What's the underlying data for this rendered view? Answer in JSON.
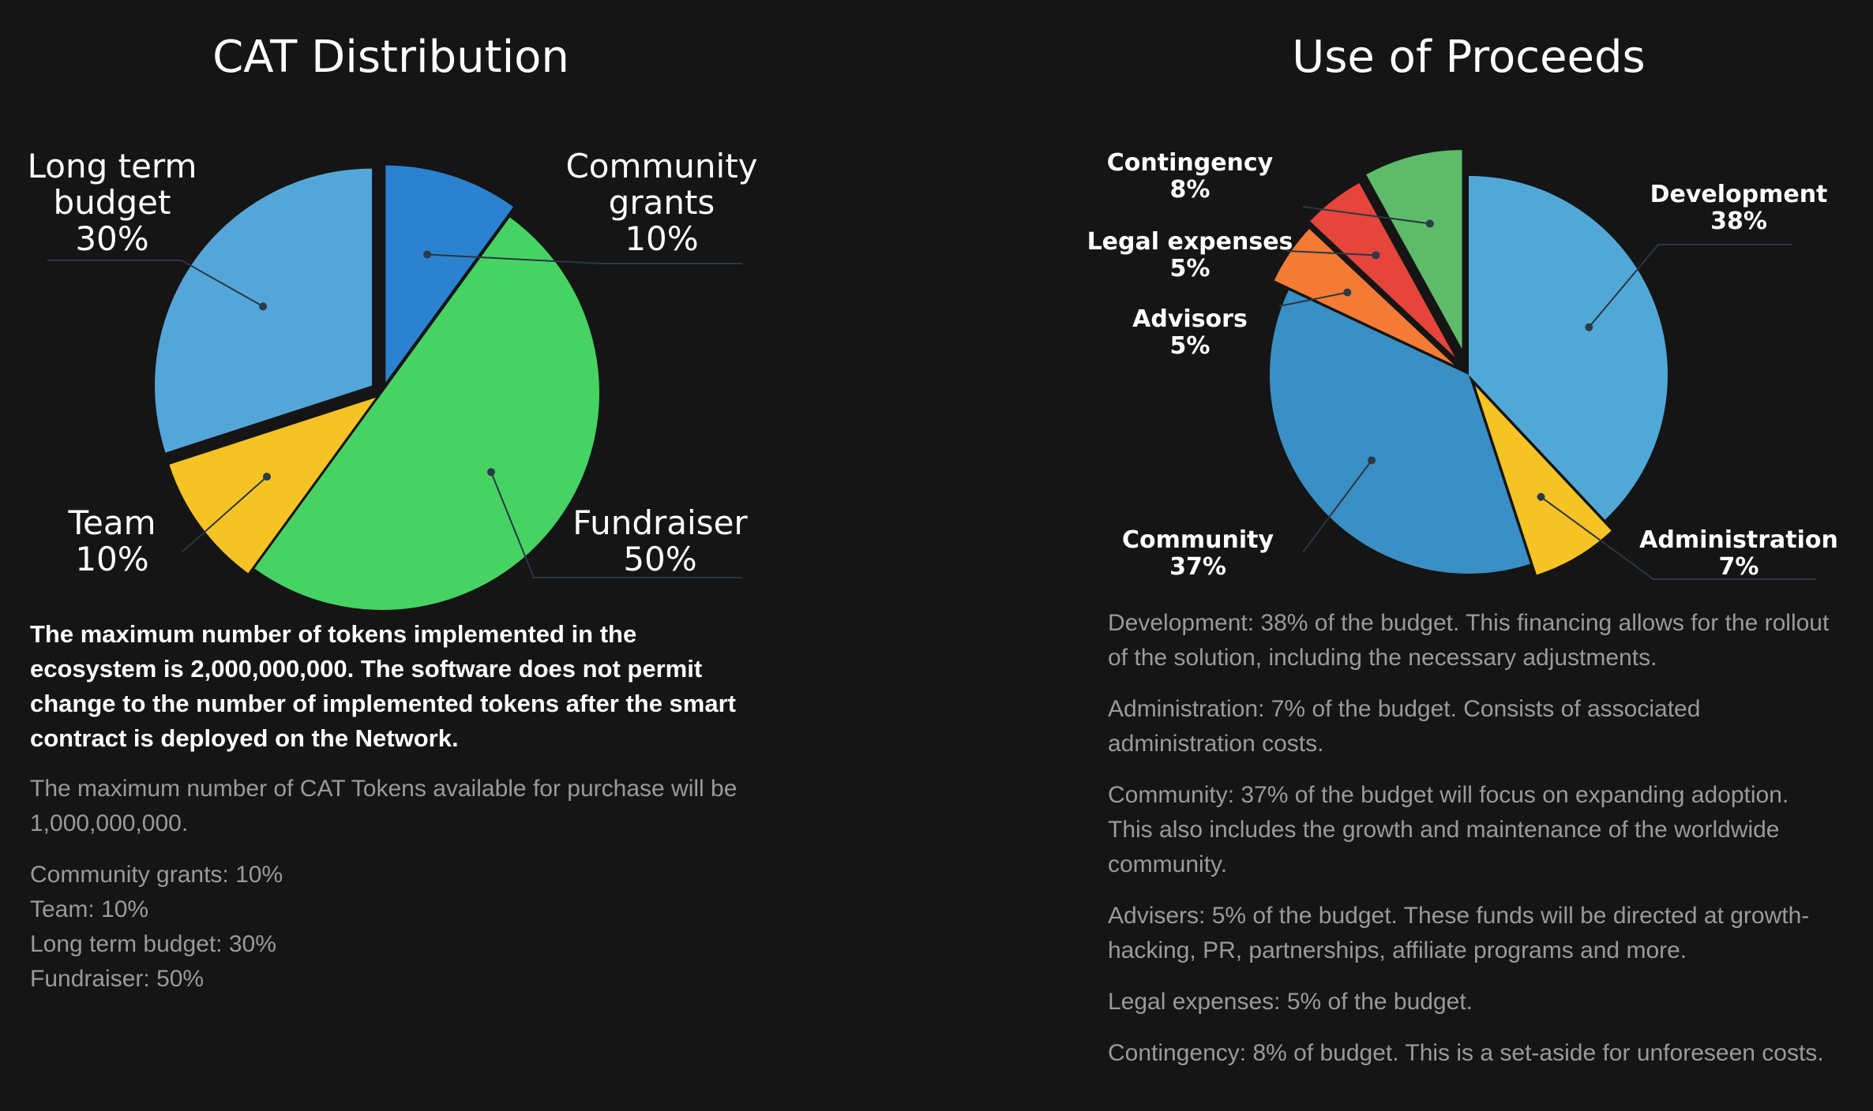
{
  "chart_data": [
    {
      "type": "pie",
      "title": "CAT Distribution",
      "categories": [
        "Community grants",
        "Fundraiser",
        "Team",
        "Long term budget"
      ],
      "values": [
        10,
        50,
        10,
        30
      ],
      "labels": [
        {
          "line1": "Community",
          "line2": "grants",
          "pct": "10%"
        },
        {
          "line1": "Fundraiser",
          "pct": "50%"
        },
        {
          "line1": "Team",
          "pct": "10%"
        },
        {
          "line1": "Long term",
          "line2": "budget",
          "pct": "30%"
        }
      ],
      "colors": [
        "#2a82d0",
        "#46d364",
        "#f6c324",
        "#54a6d8"
      ],
      "legend": "none"
    },
    {
      "type": "pie",
      "title": "Use of Proceeds",
      "categories": [
        "Development",
        "Administration",
        "Community",
        "Advisors",
        "Legal expenses",
        "Contingency"
      ],
      "values": [
        38,
        7,
        37,
        5,
        5,
        8
      ],
      "labels": [
        {
          "line1": "Development",
          "pct": "38%"
        },
        {
          "line1": "Administration",
          "pct": "7%"
        },
        {
          "line1": "Community",
          "pct": "37%"
        },
        {
          "line1": "Advisors",
          "pct": "5%"
        },
        {
          "line1": "Legal expenses",
          "pct": "5%"
        },
        {
          "line1": "Contingency",
          "pct": "8%"
        }
      ],
      "colors": [
        "#51a8d6",
        "#f6c324",
        "#3a8fc4",
        "#f37b35",
        "#e5453a",
        "#5dbb6a"
      ],
      "legend": "none"
    }
  ],
  "left_text": {
    "bold": "The maximum number of tokens implemented in the ecosystem is 2,000,000,000. The software does not permit change to the number of implemented tokens after the smart contract is deployed on the Network.",
    "purchase": "The maximum number of CAT Tokens available for purchase will be 1,000,000,000.",
    "items": [
      "Community grants: 10%",
      "Team: 10%",
      "Long term budget: 30%",
      "Fundraiser: 50%"
    ]
  },
  "right_text": [
    "Development: 38% of the budget. This financing allows for the rollout of the solution, including the necessary adjustments.",
    "Administration: 7% of the budget. Consists of associated administration costs.",
    "Community: 37% of the budget will focus on expanding adoption. This also includes the growth and maintenance of the worldwide community.",
    "Advisers: 5% of the budget. These funds will be directed at growth-hacking, PR, partnerships, affiliate programs and more.",
    "Legal expenses: 5% of the budget.",
    "Contingency: 8% of budget. This is a set-aside for unforeseen costs."
  ]
}
